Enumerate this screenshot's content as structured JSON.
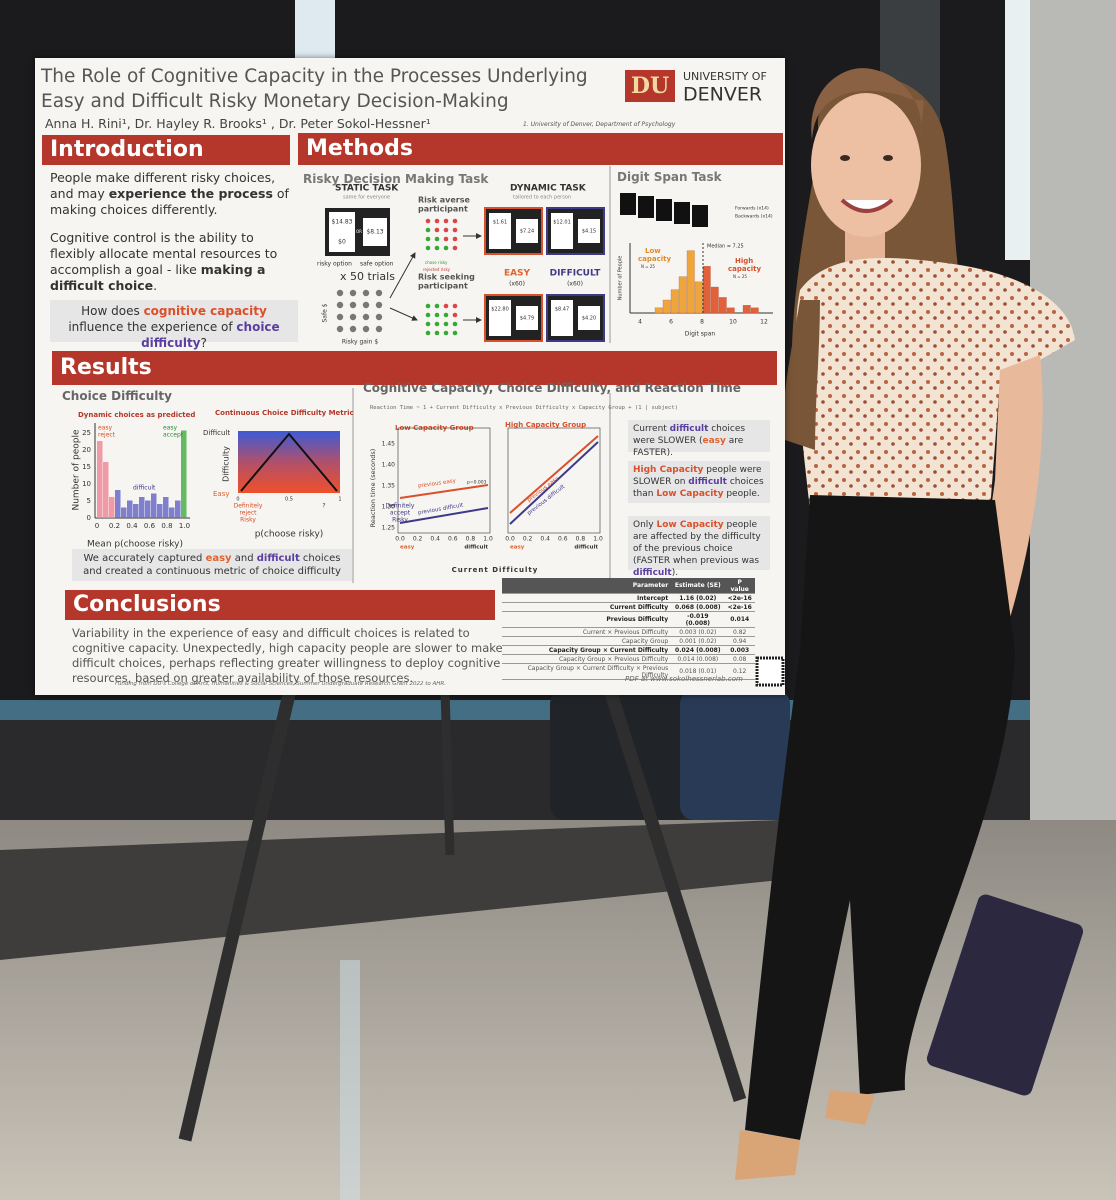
{
  "poster": {
    "title": "The Role of Cognitive Capacity in the Processes Underlying Easy and Difficult Risky Monetary Decision-Making",
    "logo": {
      "mark": "DU",
      "line1": "UNIVERSITY OF",
      "line2": "DENVER"
    },
    "authors": "Anna H. Rini¹, Dr. Hayley R. Brooks¹ , Dr. Peter Sokol-Hessner¹",
    "affiliation": "1. University of Denver, Department of Psychology",
    "introduction": {
      "heading": "Introduction",
      "paragraphs": [
        [
          "People make different risky choices, and may ",
          "experience the process",
          " of making choices differently."
        ],
        [
          "Cognitive control is the ability to flexibly allocate mental resources to accomplish a goal - like ",
          "making a difficult choice",
          "."
        ]
      ],
      "question": [
        "How does ",
        "cognitive capacity",
        " influence the experience of ",
        "choice difficulty",
        "?"
      ]
    },
    "methods": {
      "heading": "Methods",
      "task_title": "Risky Decision Making Task",
      "static_task": "STATIC TASK",
      "static_sub": "same for everyone",
      "static_amounts": [
        "$14.83",
        "$0",
        "OR",
        "$8.13"
      ],
      "option_labels": [
        "risky option",
        "safe option"
      ],
      "trials": "x 50 trials",
      "safe_axis": "Safe $",
      "risky_axis": "Risky gain $",
      "risk_averse": [
        "Risk averse",
        "participant"
      ],
      "risk_seeking": [
        "Risk seeking",
        "participant"
      ],
      "dot_legend": [
        "rejected risky",
        "chose risky"
      ],
      "dynamic_task": "DYNAMIC TASK",
      "dynamic_sub": "tailored to each person",
      "dynamic_amounts": [
        "$1.61",
        "$7.24",
        "$12.01",
        "$4.15",
        "$22.80",
        "$4.79",
        "$8.47",
        "$4.20"
      ],
      "easy": "EASY",
      "easy_n": "(x60)",
      "difficult": "DIFFICULT",
      "difficult_n": "(x60)",
      "digit_span": {
        "title": "Digit Span Task",
        "forwards": "Forwards (x14)",
        "backwards": "Backwards (x14)",
        "y_label": "Number of People",
        "x_label": "Digit span",
        "x_ticks": [
          "4",
          "6",
          "8",
          "10",
          "12"
        ],
        "median": "Median = 7.25",
        "low": [
          "Low",
          "capacity"
        ],
        "low_n": "N = 25",
        "high": [
          "High",
          "capacity"
        ],
        "high_n": "N = 25"
      }
    },
    "results": {
      "heading": "Results",
      "choice_difficulty": {
        "title": "Choice Difficulty",
        "hist_title": "Dynamic choices as predicted",
        "y_label": "Number of people",
        "y_ticks": [
          "0",
          "5",
          "10",
          "15",
          "20",
          "25"
        ],
        "x_ticks": [
          "0",
          "0.2",
          "0.4",
          "0.6",
          "0.8",
          "1.0"
        ],
        "x_label": "Mean p(choose risky)",
        "easy_reject": [
          "easy",
          "reject"
        ],
        "easy_accept": [
          "easy",
          "accept"
        ],
        "difficult": "difficult",
        "metric_title": "Continuous Choice Difficulty Metric",
        "metric_y": "Difficulty",
        "metric_top": "Difficult",
        "metric_bottom": "Easy",
        "metric_ticks": [
          "0",
          "0.5",
          "1"
        ],
        "metric_labels": [
          [
            "Definitely",
            "reject",
            "Risky"
          ],
          [
            "?"
          ],
          [
            "Definitely",
            "accept",
            "Risky"
          ]
        ],
        "metric_x": "p(choose risky)",
        "summary": [
          "We accurately captured ",
          "easy",
          " and ",
          "difficult",
          " choices and created a continuous metric of choice difficulty"
        ]
      },
      "reaction_time": {
        "title": "Cognitive Capacity, Choice Difficulty, and Reaction Time",
        "formula": "Reaction Time ~ 1 + Current Difficulty x Previous Difficulty x Capacity Group + (1 | subject)",
        "low_group": "Low Capacity Group",
        "high_group": "High Capacity Group",
        "y_label": "Reaction time (seconds)",
        "y_ticks": [
          "1.25",
          "1.30",
          "1.35",
          "1.40",
          "1.45"
        ],
        "x_ticks": [
          "0.0",
          "0.2",
          "0.4",
          "0.6",
          "0.8",
          "1.0"
        ],
        "x_easy": "easy",
        "x_difficult": "difficult",
        "x_label": "Current Difficulty",
        "prev_easy": "previous easy",
        "prev_difficult": "previous difficult",
        "p_value": "p=0.003",
        "findings": [
          [
            "Current ",
            "difficult",
            " choices were SLOWER (",
            "easy",
            " are FASTER)."
          ],
          [
            "High Capacity",
            " people were SLOWER on ",
            "difficult",
            " choices than ",
            "Low Capacity",
            " people."
          ],
          [
            "Only ",
            "Low Capacity",
            " people are affected by the difficulty of the previous choice (FASTER when previous was ",
            "difficult",
            ")."
          ]
        ]
      }
    },
    "conclusions": {
      "heading": "Conclusions",
      "text": "Variability in the experience of easy and difficult choices is related to cognitive capacity. Unexpectedly, high capacity people are slower to make difficult choices, perhaps reflecting greater willingness to deploy cognitive resources, based on greater availability of those resources."
    },
    "table": {
      "header": [
        "Parameter",
        "Estimate (SE)",
        "P value"
      ],
      "rows": [
        [
          "Intercept",
          "1.16 (0.02)",
          "<2e-16"
        ],
        [
          "Current Difficulty",
          "0.068 (0.008)",
          "<2e-16"
        ],
        [
          "Previous Difficulty",
          "-0.019 (0.008)",
          "0.014"
        ],
        [
          "Current × Previous Difficulty",
          "0.003 (0.02)",
          "0.82"
        ],
        [
          "Capacity Group",
          "0.001 (0.02)",
          "0.94"
        ],
        [
          "Capacity Group × Current Difficulty",
          "0.024 (0.008)",
          "0.003"
        ],
        [
          "Capacity Group × Previous Difficulty",
          "0.014 (0.008)",
          "0.08"
        ],
        [
          "Capacity Group × Current Difficulty × Previous Difficulty",
          "0.018 (0.01)",
          "0.12"
        ]
      ]
    },
    "funding": "Funding from DU's College of Arts, Humanities & Social Sciences, Summer Undergraduate Research Grant 2022 to AHR.",
    "pdf": "PDF at www.sokolhessnerlab.com"
  }
}
